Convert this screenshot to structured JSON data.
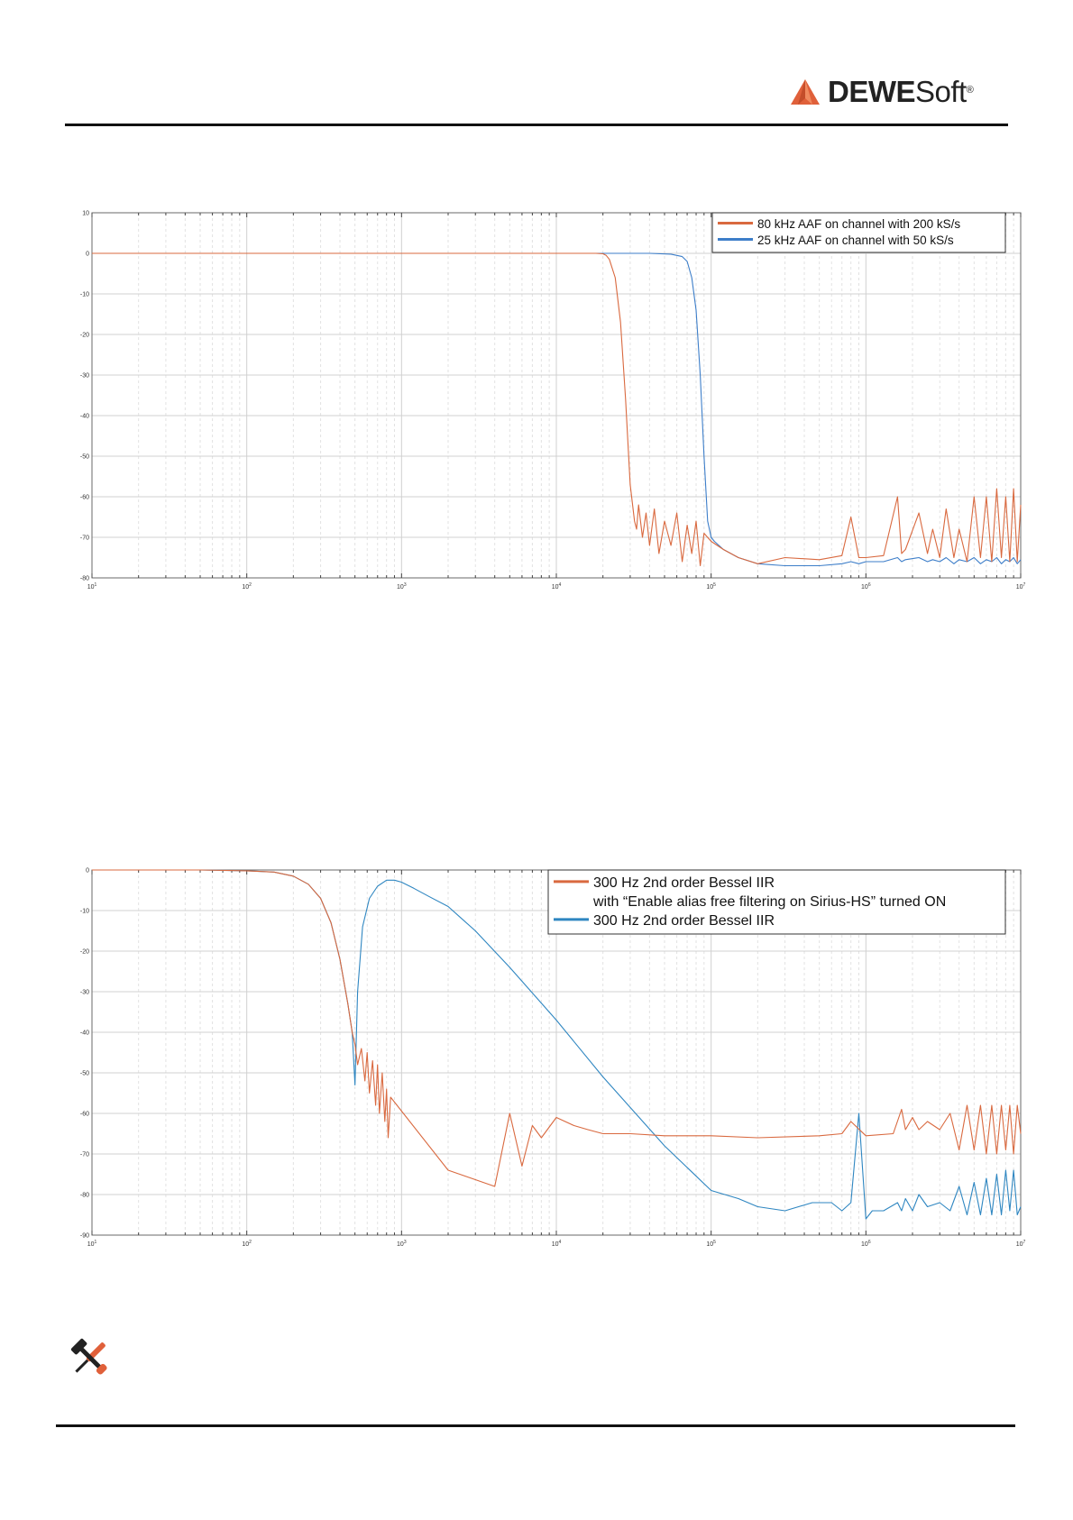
{
  "header": {
    "logo_text_bold": "DEWE",
    "logo_text_regular": "Soft",
    "logo_mark": "registered",
    "brand_color": "#e0603a"
  },
  "footer": {
    "tools_icon": "screwdriver-wrench-icon"
  },
  "chart_data": [
    {
      "type": "line",
      "xscale": "log",
      "xlim": [
        10,
        10000000
      ],
      "ylim": [
        -80,
        10
      ],
      "xticks": [
        "10^1",
        "10^2",
        "10^3",
        "10^4",
        "10^5",
        "10^6",
        "10^7"
      ],
      "yticks": [
        "10",
        "0",
        "-10",
        "-20",
        "-30",
        "-40",
        "-50",
        "-60",
        "-70",
        "-80"
      ],
      "grid": true,
      "legend_position": "top-right",
      "series": [
        {
          "name": "80 kHz AAF on channel with 200 kS/s",
          "color": "#d9693f",
          "x": [
            10,
            100,
            1000,
            10000,
            18000,
            20000,
            21000,
            22000,
            24000,
            26000,
            28000,
            30000,
            32000,
            33000,
            34000,
            36000,
            38000,
            40000,
            43000,
            46000,
            50000,
            55000,
            60000,
            65000,
            70000,
            75000,
            80000,
            85000,
            90000,
            100000,
            120000,
            150000,
            200000,
            300000,
            500000,
            700000,
            800000,
            900000,
            1000000,
            1300000,
            1600000,
            1700000,
            1800000,
            2200000,
            2500000,
            2700000,
            3000000,
            3300000,
            3700000,
            4000000,
            4500000,
            5000000,
            5500000,
            6000000,
            6500000,
            7000000,
            7500000,
            8000000,
            8500000,
            9000000,
            9500000,
            10000000
          ],
          "y": [
            0,
            0,
            0,
            0,
            0,
            -0.1,
            -0.5,
            -1.5,
            -6,
            -17,
            -36,
            -57,
            -66,
            -68,
            -62,
            -70,
            -64,
            -72,
            -63,
            -74,
            -66,
            -72,
            -64,
            -76,
            -67,
            -74,
            -66,
            -77,
            -69,
            -71,
            -73,
            -75,
            -76.5,
            -75,
            -75.5,
            -74.5,
            -65,
            -75,
            -75,
            -74.5,
            -60,
            -74,
            -73,
            -64,
            -74,
            -68,
            -75,
            -63,
            -75,
            -68,
            -76,
            -60,
            -75,
            -60,
            -76,
            -58,
            -75,
            -60,
            -76,
            -58,
            -76,
            -62
          ]
        },
        {
          "name": "25 kHz AAF on channel with 50 kS/s",
          "color": "#3d7ec9",
          "x": [
            10,
            100,
            1000,
            10000,
            40000,
            55000,
            65000,
            70000,
            75000,
            80000,
            85000,
            90000,
            95000,
            100000,
            105000,
            120000,
            150000,
            200000,
            300000,
            500000,
            700000,
            800000,
            900000,
            1000000,
            1300000,
            1600000,
            1700000,
            1800000,
            2200000,
            2500000,
            2700000,
            3000000,
            3300000,
            3700000,
            4000000,
            4500000,
            5000000,
            5500000,
            6000000,
            6500000,
            7000000,
            7500000,
            8000000,
            8500000,
            9000000,
            9500000,
            10000000
          ],
          "y": [
            0,
            0,
            0,
            0,
            0,
            -0.2,
            -0.8,
            -2,
            -6,
            -14,
            -30,
            -50,
            -66,
            -70,
            -71,
            -73,
            -75,
            -76.5,
            -77,
            -77,
            -76.5,
            -76,
            -76.5,
            -76,
            -76,
            -75,
            -76,
            -75.5,
            -75,
            -76,
            -75.5,
            -76,
            -75,
            -76.5,
            -75.5,
            -76,
            -75,
            -76.5,
            -75.5,
            -76,
            -75,
            -76.5,
            -75.5,
            -76,
            -75,
            -76.5,
            -75.5
          ]
        }
      ]
    },
    {
      "type": "line",
      "xscale": "log",
      "xlim": [
        10,
        10000000
      ],
      "ylim": [
        -90,
        0
      ],
      "xticks": [
        "10^1",
        "10^2",
        "10^3",
        "10^4",
        "10^5",
        "10^6",
        "10^7"
      ],
      "yticks": [
        "0",
        "-10",
        "-20",
        "-30",
        "-40",
        "-50",
        "-60",
        "-70",
        "-80",
        "-90"
      ],
      "grid": true,
      "legend_position": "top-right",
      "series": [
        {
          "name": "300 Hz 2nd order Bessel IIR\nwith “Enable alias free filtering on Sirius-HS” turned ON",
          "color": "#d9693f",
          "x": [
            10,
            50,
            100,
            150,
            200,
            250,
            300,
            350,
            400,
            450,
            480,
            500,
            520,
            550,
            580,
            600,
            620,
            650,
            680,
            700,
            720,
            750,
            780,
            800,
            820,
            850,
            2000,
            4000,
            5000,
            6000,
            7000,
            8000,
            10000,
            13000,
            16000,
            20000,
            30000,
            50000,
            100000,
            200000,
            500000,
            700000,
            800000,
            1000000,
            1500000,
            1700000,
            1800000,
            2000000,
            2200000,
            2500000,
            3000000,
            3500000,
            4000000,
            4500000,
            5000000,
            5500000,
            6000000,
            6500000,
            7000000,
            7500000,
            8000000,
            8500000,
            9000000,
            9500000,
            10000000
          ],
          "y": [
            0,
            0,
            -0.2,
            -0.5,
            -1.5,
            -3.5,
            -7,
            -13,
            -22,
            -33,
            -40,
            -43,
            -48,
            -44,
            -52,
            -45,
            -55,
            -47,
            -58,
            -48,
            -60,
            -50,
            -62,
            -54,
            -66,
            -56,
            -74,
            -78,
            -60,
            -73,
            -63,
            -66,
            -61,
            -63,
            -64,
            -65,
            -65,
            -65.5,
            -65.5,
            -66,
            -65.5,
            -65,
            -62,
            -65.5,
            -65,
            -59,
            -64,
            -61,
            -64,
            -62,
            -64,
            -60,
            -69,
            -58,
            -69,
            -58,
            -70,
            -58,
            -70,
            -58,
            -69,
            -58,
            -70,
            -58,
            -65
          ]
        },
        {
          "name": "300 Hz 2nd order Bessel IIR",
          "color": "#2e86c1",
          "x": [
            10,
            50,
            100,
            150,
            200,
            250,
            300,
            350,
            400,
            450,
            480,
            500,
            520,
            560,
            620,
            700,
            800,
            900,
            1000,
            1200,
            1500,
            2000,
            3000,
            5000,
            10000,
            20000,
            50000,
            100000,
            150000,
            200000,
            300000,
            450000,
            600000,
            700000,
            800000,
            900000,
            1000000,
            1100000,
            1300000,
            1600000,
            1700000,
            1800000,
            2000000,
            2200000,
            2500000,
            3000000,
            3500000,
            4000000,
            4500000,
            5000000,
            5500000,
            6000000,
            6500000,
            7000000,
            7500000,
            8000000,
            8500000,
            9000000,
            9500000,
            10000000
          ],
          "y": [
            0,
            0,
            -0.2,
            -0.5,
            -1.5,
            -3.5,
            -7,
            -13,
            -22,
            -33,
            -40,
            -53,
            -30,
            -14,
            -7,
            -4,
            -2.5,
            -2.5,
            -3,
            -4.5,
            -6.5,
            -9,
            -15,
            -24,
            -37,
            -51,
            -68,
            -79,
            -81,
            -83,
            -84,
            -82,
            -82,
            -84,
            -82,
            -60,
            -86,
            -84,
            -84,
            -82,
            -84,
            -81,
            -84,
            -80,
            -83,
            -82,
            -84,
            -78,
            -85,
            -77,
            -85,
            -76,
            -85,
            -75,
            -85,
            -74,
            -84,
            -74,
            -85,
            -83
          ]
        }
      ]
    }
  ]
}
